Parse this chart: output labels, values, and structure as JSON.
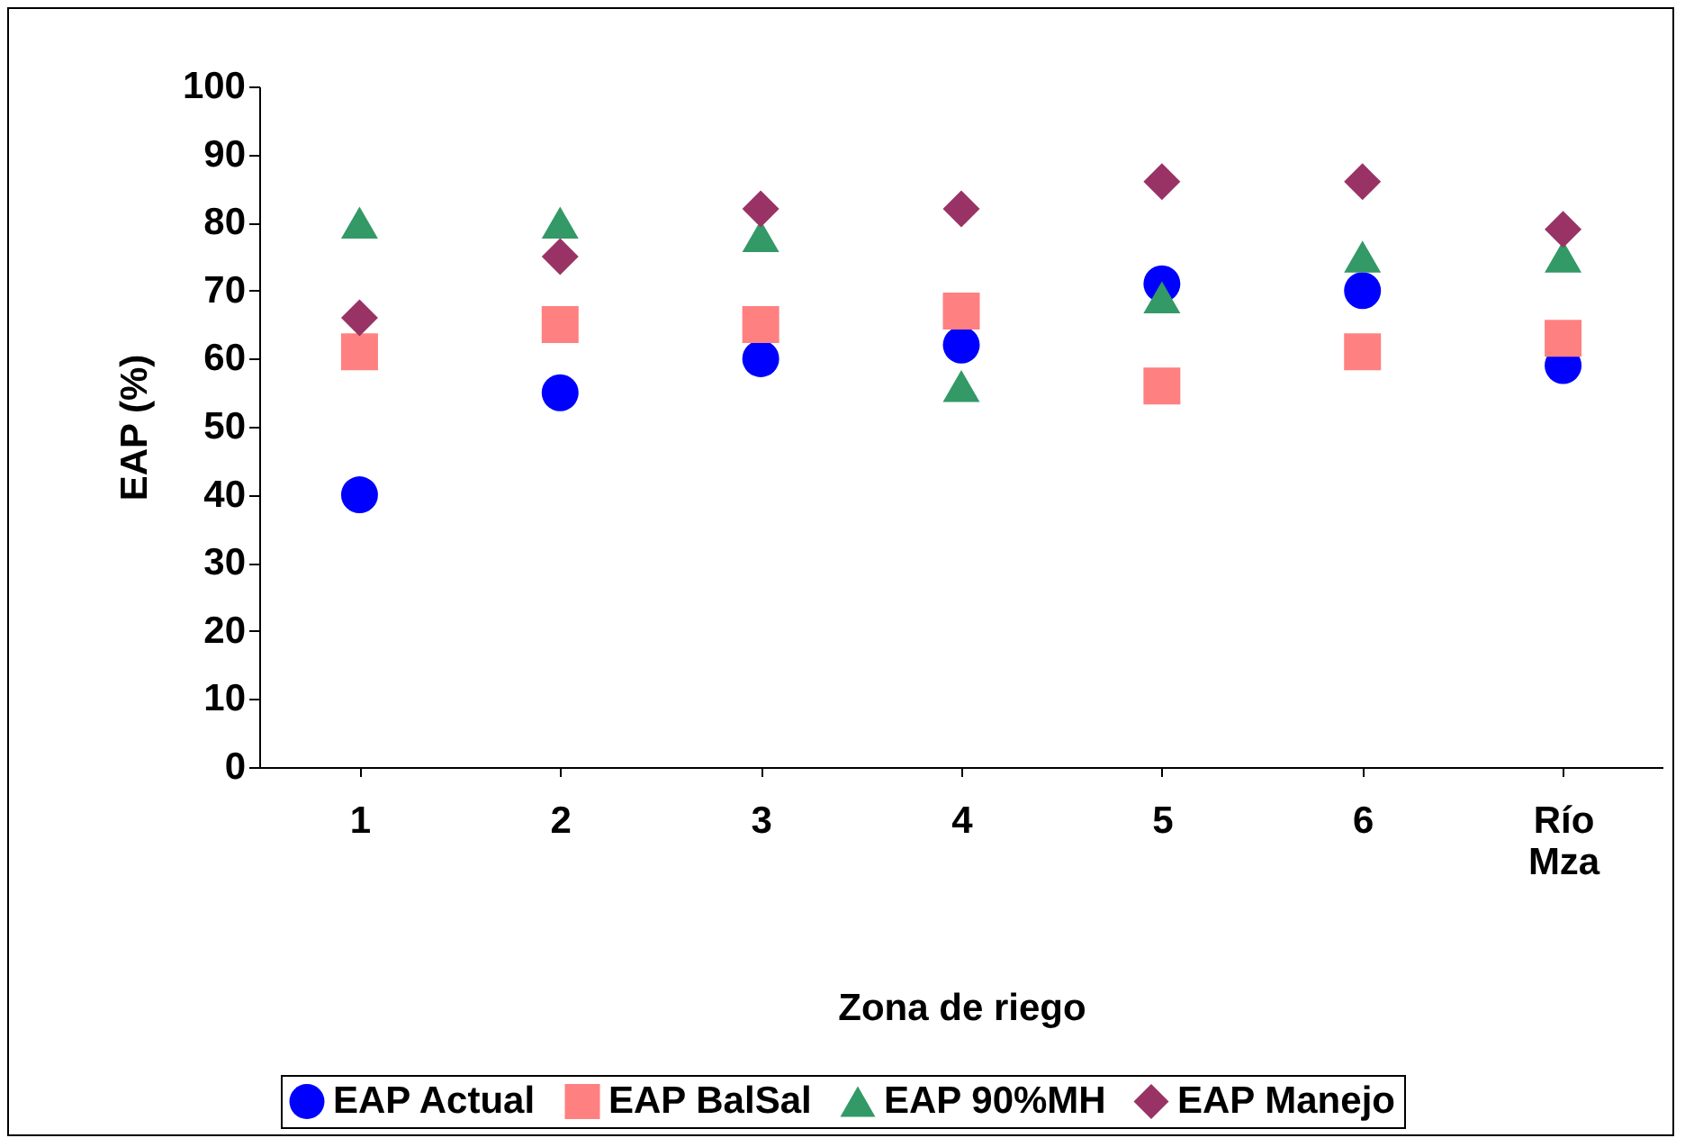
{
  "chart_data": {
    "type": "scatter",
    "xlabel": "Zona de riego",
    "ylabel": "EAP (%)",
    "categories": [
      "1",
      "2",
      "3",
      "4",
      "5",
      "6",
      "Río Mza"
    ],
    "ylim": [
      0,
      100
    ],
    "yticks": [
      0,
      10,
      20,
      30,
      40,
      50,
      60,
      70,
      80,
      90,
      100
    ],
    "grid": false,
    "legend": "bottom",
    "series": [
      {
        "name": "EAP Actual",
        "color": "#0000ff",
        "marker": "circle",
        "values": [
          40,
          55,
          60,
          62,
          71,
          70,
          59
        ]
      },
      {
        "name": "EAP BalSal",
        "color": "#ff8080",
        "marker": "square",
        "values": [
          61,
          65,
          65,
          67,
          56,
          61,
          63
        ]
      },
      {
        "name": "EAP 90%MH",
        "color": "#339966",
        "marker": "triangle",
        "values": [
          80,
          80,
          78,
          56,
          69,
          75,
          75
        ]
      },
      {
        "name": "EAP Manejo",
        "color": "#993366",
        "marker": "diamond",
        "values": [
          66,
          75,
          82,
          82,
          86,
          86,
          79
        ]
      }
    ]
  }
}
